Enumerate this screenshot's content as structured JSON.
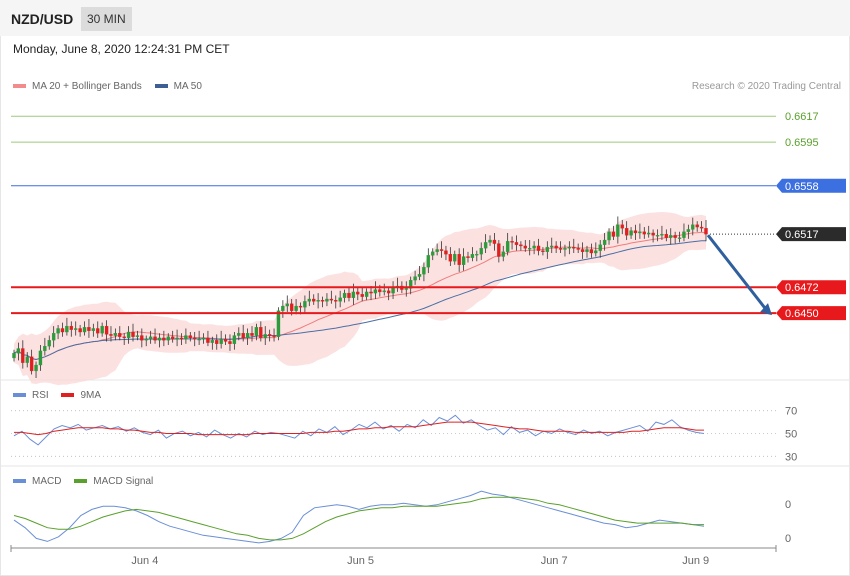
{
  "header": {
    "symbol": "NZD/USD",
    "timeframe": "30 MIN",
    "datetime": "Monday, June 8, 2020 12:24:31 PM CET",
    "credit": "Research © 2020 Trading Central"
  },
  "colors": {
    "bb_band": "#fbd7d7",
    "ma20": "#f07c7c",
    "ma50": "#4a6fa5",
    "level_green": "#9bcb7a",
    "level_blue": "#3c6fe0",
    "level_red": "#e8191c",
    "last_price": "#2b2b2b",
    "candle_up": "#2d9b3c",
    "candle_down": "#e02020",
    "rsi": "#6b8fd6",
    "rsi_ma": "#e02020",
    "macd": "#6b8fd6",
    "macd_signal": "#5aa02c",
    "arrow": "#2f5f9e"
  },
  "main_legend": [
    {
      "label": "MA 20 + Bollinger Bands",
      "color": "#f28b8b"
    },
    {
      "label": "MA 50",
      "color": "#3e5f94"
    }
  ],
  "rsi_legend": [
    {
      "label": "RSI",
      "color": "#6b8fd6"
    },
    {
      "label": "9MA",
      "color": "#e02020"
    }
  ],
  "macd_legend": [
    {
      "label": "MACD",
      "color": "#6b8fd6"
    },
    {
      "label": "MACD Signal",
      "color": "#5aa02c"
    }
  ],
  "chart_data": [
    {
      "type": "candlestick",
      "title": "NZD/USD",
      "ylim": [
        0.6395,
        0.6635
      ],
      "levels": [
        {
          "value": 0.6617,
          "label": "0.6617",
          "kind": "green"
        },
        {
          "value": 0.6595,
          "label": "0.6595",
          "kind": "green"
        },
        {
          "value": 0.6558,
          "label": "0.6558",
          "kind": "blue"
        },
        {
          "value": 0.6517,
          "label": "0.6517",
          "kind": "last"
        },
        {
          "value": 0.6472,
          "label": "0.6472",
          "kind": "red"
        },
        {
          "value": 0.645,
          "label": "0.6450",
          "kind": "red"
        }
      ],
      "forecast_arrow": {
        "from": 0.6517,
        "to": 0.645
      },
      "series_close": [
        0.6416,
        0.642,
        0.6408,
        0.6413,
        0.6401,
        0.6406,
        0.6418,
        0.6422,
        0.6427,
        0.6433,
        0.6437,
        0.6434,
        0.6439,
        0.6436,
        0.6437,
        0.6434,
        0.6438,
        0.6435,
        0.6437,
        0.6433,
        0.6439,
        0.6432,
        0.6431,
        0.6433,
        0.643,
        0.6429,
        0.6434,
        0.643,
        0.6431,
        0.6427,
        0.6428,
        0.643,
        0.6427,
        0.6429,
        0.6427,
        0.643,
        0.6428,
        0.6429,
        0.6428,
        0.6431,
        0.6429,
        0.6428,
        0.6428,
        0.6429,
        0.6425,
        0.6427,
        0.6424,
        0.6428,
        0.6426,
        0.6424,
        0.6431,
        0.6433,
        0.6429,
        0.6433,
        0.6431,
        0.6438,
        0.6429,
        0.6432,
        0.6431,
        0.643,
        0.6452,
        0.6456,
        0.6458,
        0.6452,
        0.6456,
        0.6455,
        0.646,
        0.6462,
        0.646,
        0.6461,
        0.646,
        0.6462,
        0.6461,
        0.646,
        0.6463,
        0.6467,
        0.6463,
        0.6468,
        0.6466,
        0.6464,
        0.6468,
        0.6467,
        0.647,
        0.6468,
        0.6469,
        0.6467,
        0.6472,
        0.6473,
        0.647,
        0.6471,
        0.6478,
        0.6481,
        0.6483,
        0.6489,
        0.6499,
        0.6502,
        0.6504,
        0.6503,
        0.65,
        0.6494,
        0.65,
        0.6491,
        0.6498,
        0.6497,
        0.65,
        0.65,
        0.6505,
        0.651,
        0.6512,
        0.6509,
        0.6498,
        0.6502,
        0.6511,
        0.651,
        0.6508,
        0.6507,
        0.6505,
        0.6505,
        0.6507,
        0.6503,
        0.6502,
        0.6506,
        0.6507,
        0.6505,
        0.6504,
        0.6505,
        0.6506,
        0.6505,
        0.6504,
        0.6502,
        0.6504,
        0.6501,
        0.6503,
        0.6508,
        0.6512,
        0.6519,
        0.6515,
        0.6525,
        0.6522,
        0.6516,
        0.652,
        0.6518,
        0.6519,
        0.6517,
        0.6518,
        0.6516,
        0.6516,
        0.6517,
        0.6514,
        0.6516,
        0.6514,
        0.6514,
        0.6519,
        0.6521,
        0.6525,
        0.6523,
        0.6522,
        0.6517
      ],
      "xlabels": [
        {
          "label": "Jun 4",
          "pos": 0.175
        },
        {
          "label": "Jun 5",
          "pos": 0.457
        },
        {
          "label": "Jun 7",
          "pos": 0.71
        },
        {
          "label": "Jun 9",
          "pos": 0.895
        }
      ]
    },
    {
      "type": "line",
      "title": "RSI",
      "ylim": [
        25,
        75
      ],
      "yticks": [
        {
          "value": 70,
          "label": "70"
        },
        {
          "value": 50,
          "label": "50"
        },
        {
          "value": 30,
          "label": "30"
        }
      ],
      "series": [
        {
          "name": "RSI",
          "values": [
            48,
            52,
            45,
            40,
            47,
            54,
            57,
            55,
            58,
            53,
            55,
            57,
            54,
            56,
            52,
            55,
            51,
            49,
            53,
            46,
            50,
            52,
            48,
            51,
            47,
            53,
            49,
            46,
            50,
            47,
            52,
            49,
            51,
            50,
            48,
            46,
            52,
            48,
            54,
            51,
            56,
            49,
            53,
            58,
            55,
            60,
            54,
            57,
            52,
            58,
            55,
            62,
            57,
            64,
            61,
            66,
            59,
            62,
            57,
            53,
            55,
            49,
            56,
            51,
            53,
            48,
            52,
            50,
            54,
            51,
            49,
            53,
            50,
            52,
            48,
            51,
            53,
            55,
            57,
            52,
            60,
            58,
            62,
            56,
            53,
            51,
            50
          ],
          "color": "#6b8fd6"
        },
        {
          "name": "9MA",
          "values": [
            51,
            51,
            50,
            49,
            50,
            52,
            53,
            54,
            55,
            55,
            55,
            55,
            54,
            54,
            53,
            53,
            52,
            51,
            51,
            50,
            50,
            50,
            50,
            49,
            49,
            49,
            49,
            49,
            49,
            49,
            50,
            50,
            50,
            50,
            50,
            50,
            50,
            51,
            51,
            51,
            52,
            52,
            53,
            54,
            54,
            55,
            55,
            56,
            56,
            56,
            56,
            57,
            58,
            59,
            60,
            60,
            60,
            60,
            59,
            58,
            57,
            56,
            55,
            54,
            54,
            53,
            52,
            52,
            52,
            52,
            51,
            51,
            51,
            51,
            51,
            51,
            51,
            52,
            52,
            53,
            54,
            55,
            55,
            55,
            54,
            53,
            53
          ],
          "color": "#e02020"
        }
      ]
    },
    {
      "type": "line",
      "title": "MACD",
      "yticks": [
        {
          "label": "0",
          "pos": 0.28
        },
        {
          "label": "0",
          "pos": 0.86
        }
      ],
      "series": [
        {
          "name": "MACD",
          "values": [
            -1,
            -6,
            -13,
            -15,
            -12,
            -6,
            2,
            6,
            8,
            8,
            7,
            5,
            2,
            -2,
            -5,
            -7,
            -9,
            -11,
            -12,
            -13,
            -14,
            -15,
            -16,
            -15,
            -13,
            -9,
            2,
            7,
            8,
            9,
            8,
            6,
            8,
            9,
            9,
            10,
            9,
            8,
            9,
            11,
            13,
            15,
            18,
            16,
            15,
            13,
            11,
            9,
            7,
            5,
            3,
            1,
            -1,
            -3,
            -4,
            -6,
            -5,
            -3,
            -1,
            -2,
            -3,
            -4,
            -5
          ],
          "color": "#6b8fd6"
        },
        {
          "name": "MACD Signal",
          "values": [
            2,
            0,
            -3,
            -6,
            -7,
            -7,
            -5,
            -2,
            1,
            3,
            5,
            6,
            5,
            4,
            2,
            0,
            -2,
            -4,
            -6,
            -8,
            -10,
            -11,
            -13,
            -14,
            -14,
            -13,
            -10,
            -6,
            -2,
            1,
            3,
            5,
            6,
            7,
            7,
            8,
            8,
            8,
            8,
            9,
            10,
            11,
            13,
            14,
            14,
            14,
            13,
            12,
            10,
            9,
            7,
            5,
            3,
            1,
            -1,
            -2,
            -3,
            -3,
            -3,
            -3,
            -3,
            -4,
            -4
          ],
          "color": "#5aa02c"
        }
      ]
    }
  ]
}
